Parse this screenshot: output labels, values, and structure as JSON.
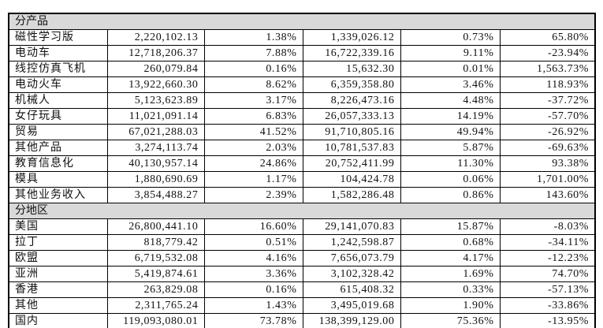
{
  "colors": {
    "section_header_bg": "#d9d9d9",
    "grid_border": "#000000",
    "text": "#111111",
    "background": "#ffffff"
  },
  "table": {
    "sections": [
      {
        "label": "分产品",
        "rows": [
          {
            "name": "磁性学习版",
            "v1": "2,220,102.13",
            "p1": "1.38%",
            "v2": "1,339,026.12",
            "p2": "0.73%",
            "chg": "65.80%"
          },
          {
            "name": "电动车",
            "v1": "12,718,206.37",
            "p1": "7.88%",
            "v2": "16,722,339.16",
            "p2": "9.11%",
            "chg": "-23.94%"
          },
          {
            "name": "线控仿真飞机",
            "v1": "260,079.84",
            "p1": "0.16%",
            "v2": "15,632.30",
            "p2": "0.01%",
            "chg": "1,563.73%"
          },
          {
            "name": "电动火车",
            "v1": "13,922,660.30",
            "p1": "8.62%",
            "v2": "6,359,358.80",
            "p2": "3.46%",
            "chg": "118.93%"
          },
          {
            "name": "机械人",
            "v1": "5,123,623.89",
            "p1": "3.17%",
            "v2": "8,226,473.16",
            "p2": "4.48%",
            "chg": "-37.72%"
          },
          {
            "name": "女仔玩具",
            "v1": "11,021,091.14",
            "p1": "6.83%",
            "v2": "26,057,333.13",
            "p2": "14.19%",
            "chg": "-57.70%"
          },
          {
            "name": "贸易",
            "v1": "67,021,288.03",
            "p1": "41.52%",
            "v2": "91,710,805.16",
            "p2": "49.94%",
            "chg": "-26.92%"
          },
          {
            "name": "其他产品",
            "v1": "3,274,113.74",
            "p1": "2.03%",
            "v2": "10,781,537.83",
            "p2": "5.87%",
            "chg": "-69.63%"
          },
          {
            "name": "教育信息化",
            "v1": "40,130,957.14",
            "p1": "24.86%",
            "v2": "20,752,411.99",
            "p2": "11.30%",
            "chg": "93.38%"
          },
          {
            "name": "模具",
            "v1": "1,880,690.69",
            "p1": "1.17%",
            "v2": "104,424.78",
            "p2": "0.06%",
            "chg": "1,701.00%"
          },
          {
            "name": "其他业务收入",
            "v1": "3,854,488.27",
            "p1": "2.39%",
            "v2": "1,582,286.48",
            "p2": "0.86%",
            "chg": "143.60%"
          }
        ]
      },
      {
        "label": "分地区",
        "rows": [
          {
            "name": "美国",
            "v1": "26,800,441.10",
            "p1": "16.60%",
            "v2": "29,141,070.83",
            "p2": "15.87%",
            "chg": "-8.03%"
          },
          {
            "name": "拉丁",
            "v1": "818,779.42",
            "p1": "0.51%",
            "v2": "1,242,598.87",
            "p2": "0.68%",
            "chg": "-34.11%"
          },
          {
            "name": "欧盟",
            "v1": "6,719,532.08",
            "p1": "4.16%",
            "v2": "7,656,073.79",
            "p2": "4.17%",
            "chg": "-12.23%"
          },
          {
            "name": "亚洲",
            "v1": "5,419,874.61",
            "p1": "3.36%",
            "v2": "3,102,328.42",
            "p2": "1.69%",
            "chg": "74.70%"
          },
          {
            "name": "香港",
            "v1": "263,829.08",
            "p1": "0.16%",
            "v2": "615,408.32",
            "p2": "0.33%",
            "chg": "-57.13%"
          },
          {
            "name": "其他",
            "v1": "2,311,765.24",
            "p1": "1.43%",
            "v2": "3,495,019.68",
            "p2": "1.90%",
            "chg": "-33.86%"
          },
          {
            "name": "国内",
            "v1": "119,093,080.01",
            "p1": "73.78%",
            "v2": "138,399,129.00",
            "p2": "75.36%",
            "chg": "-13.95%"
          }
        ]
      }
    ]
  }
}
